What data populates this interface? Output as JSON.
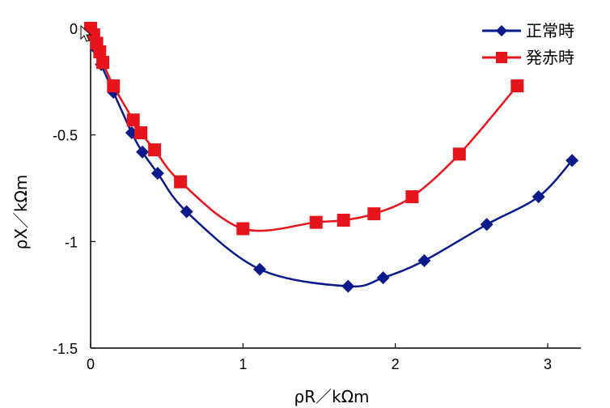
{
  "chart_data": {
    "type": "line",
    "xlabel": "ρR／kΩm",
    "ylabel": "ρX／kΩm",
    "xlim": [
      0,
      3.2
    ],
    "ylim": [
      -1.5,
      0
    ],
    "x_ticks": [
      "0",
      "1",
      "2",
      "3"
    ],
    "y_ticks": [
      "0",
      "-0.5",
      "-1",
      "-1.5"
    ],
    "x_tick_values": [
      0,
      1,
      2,
      3
    ],
    "y_tick_values": [
      0,
      -0.5,
      -1,
      -1.5
    ],
    "grid": false,
    "legend_position": "top-right",
    "series": [
      {
        "name": "正常時",
        "color": "#0a1a8c",
        "marker": "diamond",
        "points": [
          [
            0.0,
            0.0
          ],
          [
            0.02,
            -0.04
          ],
          [
            0.04,
            -0.1
          ],
          [
            0.07,
            -0.17
          ],
          [
            0.15,
            -0.3
          ],
          [
            0.27,
            -0.49
          ],
          [
            0.34,
            -0.58
          ],
          [
            0.44,
            -0.68
          ],
          [
            0.63,
            -0.86
          ],
          [
            1.11,
            -1.13
          ],
          [
            1.69,
            -1.21
          ],
          [
            1.92,
            -1.17
          ],
          [
            2.19,
            -1.09
          ],
          [
            2.6,
            -0.92
          ],
          [
            2.94,
            -0.79
          ],
          [
            3.16,
            -0.62
          ]
        ]
      },
      {
        "name": "発赤時",
        "color": "#e8141b",
        "marker": "square",
        "points": [
          [
            0.0,
            0.0
          ],
          [
            0.02,
            -0.03
          ],
          [
            0.04,
            -0.07
          ],
          [
            0.06,
            -0.11
          ],
          [
            0.08,
            -0.16
          ],
          [
            0.15,
            -0.27
          ],
          [
            0.28,
            -0.43
          ],
          [
            0.33,
            -0.49
          ],
          [
            0.42,
            -0.57
          ],
          [
            0.59,
            -0.72
          ],
          [
            1.0,
            -0.94
          ],
          [
            1.48,
            -0.91
          ],
          [
            1.66,
            -0.9
          ],
          [
            1.86,
            -0.87
          ],
          [
            2.11,
            -0.79
          ],
          [
            2.42,
            -0.59
          ],
          [
            2.8,
            -0.27
          ]
        ]
      }
    ]
  }
}
